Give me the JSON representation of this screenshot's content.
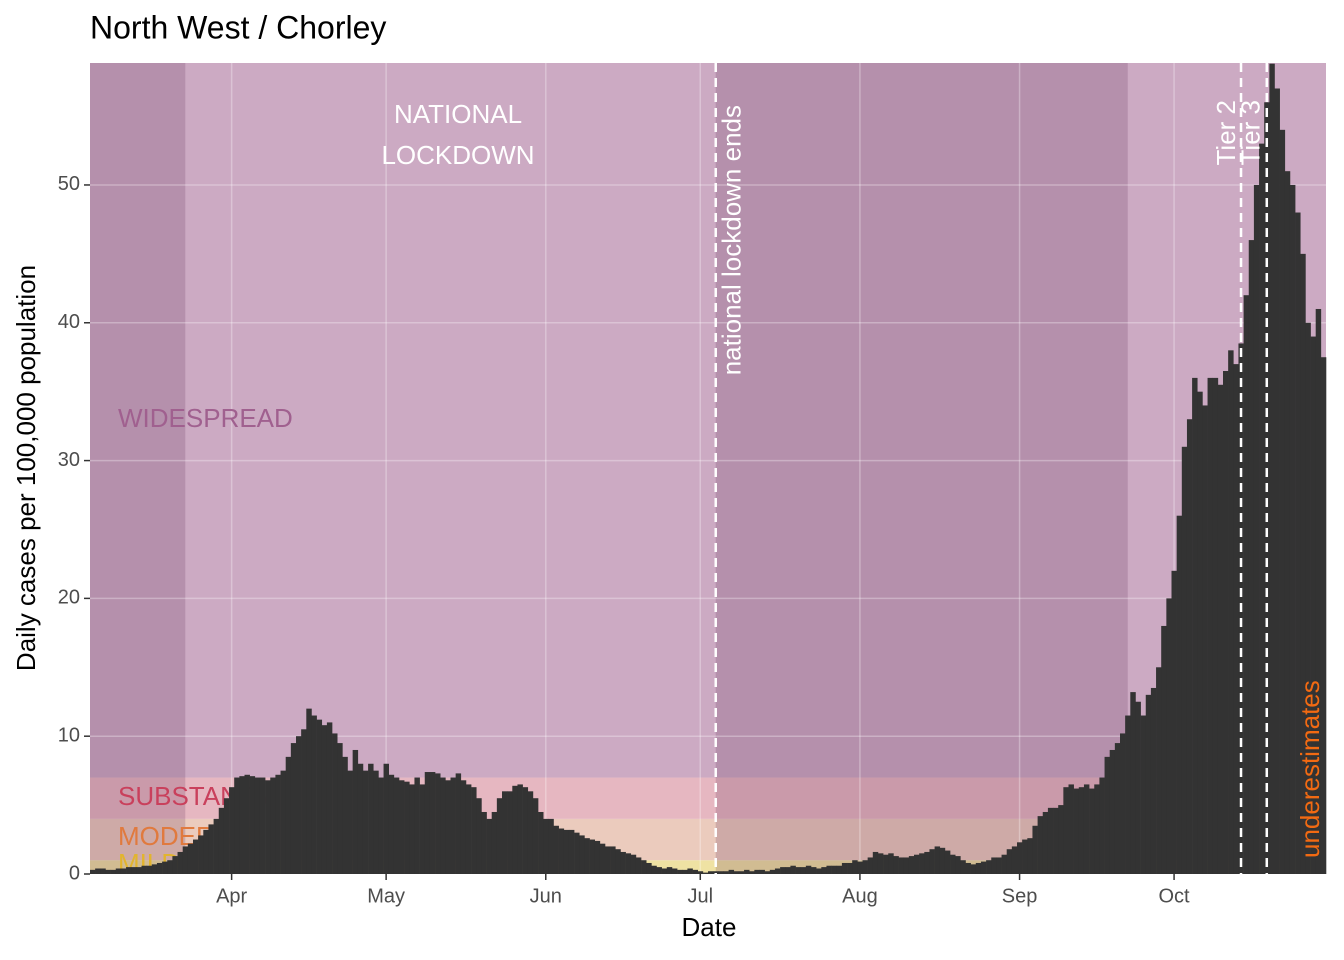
{
  "chart_data": {
    "type": "bar",
    "title": "North West / Chorley",
    "x_label": "Date",
    "y_label": "Daily cases per 100,000 population",
    "xlim": [
      64.5,
      304.5
    ],
    "xticks": [
      {
        "value": 92,
        "label": "Apr"
      },
      {
        "value": 122,
        "label": "May"
      },
      {
        "value": 153,
        "label": "Jun"
      },
      {
        "value": 183,
        "label": "Jul"
      },
      {
        "value": 214,
        "label": "Aug"
      },
      {
        "value": 245,
        "label": "Sep"
      },
      {
        "value": 275,
        "label": "Oct"
      }
    ],
    "ylim": [
      0,
      58.85
    ],
    "yticks": [
      0,
      10,
      20,
      30,
      40,
      50
    ],
    "grid": true,
    "color": "#333333",
    "levels": [
      {
        "label": "MILD",
        "from": 0,
        "to": 1,
        "color": "#efe2a3",
        "text_color": "#e2b42e"
      },
      {
        "label": "MODERATE",
        "from": 1,
        "to": 4,
        "color": "#ebcbbd",
        "text_color": "#e07a3e"
      },
      {
        "label": "SUBSTANTIAL",
        "from": 4,
        "to": 7,
        "color": "#e6b7c1",
        "text_color": "#c9405c"
      },
      {
        "label": "WIDESPREAD",
        "from": 7,
        "to": 58.85,
        "color": "#ccaac3",
        "text_color": "#a0608f"
      }
    ],
    "shaded_periods": [
      [
        64.5,
        83
      ],
      [
        186,
        266
      ]
    ],
    "shade_color": "#5a2a50",
    "shade_opacity": 0.2,
    "lockdown_label": [
      "NATIONAL",
      "LOCKDOWN"
    ],
    "events": [
      {
        "x": 186,
        "label": "national lockdown ends"
      },
      {
        "x": 288,
        "label": "Tier 2"
      },
      {
        "x": 293,
        "label": "Tier 3"
      }
    ],
    "note": "underestimates",
    "note_color": "#f26a12",
    "x": [
      65,
      66,
      67,
      68,
      69,
      70,
      71,
      72,
      73,
      74,
      75,
      76,
      77,
      78,
      79,
      80,
      81,
      82,
      83,
      84,
      85,
      86,
      87,
      88,
      89,
      90,
      91,
      92,
      93,
      94,
      95,
      96,
      97,
      98,
      99,
      100,
      101,
      102,
      103,
      104,
      105,
      106,
      107,
      108,
      109,
      110,
      111,
      112,
      113,
      114,
      115,
      116,
      117,
      118,
      119,
      120,
      121,
      122,
      123,
      124,
      125,
      126,
      127,
      128,
      129,
      130,
      131,
      132,
      133,
      134,
      135,
      136,
      137,
      138,
      139,
      140,
      141,
      142,
      143,
      144,
      145,
      146,
      147,
      148,
      149,
      150,
      151,
      152,
      153,
      154,
      155,
      156,
      157,
      158,
      159,
      160,
      161,
      162,
      163,
      164,
      165,
      166,
      167,
      168,
      169,
      170,
      171,
      172,
      173,
      174,
      175,
      176,
      177,
      178,
      179,
      180,
      181,
      182,
      183,
      184,
      185,
      186,
      187,
      188,
      189,
      190,
      191,
      192,
      193,
      194,
      195,
      196,
      197,
      198,
      199,
      200,
      201,
      202,
      203,
      204,
      205,
      206,
      207,
      208,
      209,
      210,
      211,
      212,
      213,
      214,
      215,
      216,
      217,
      218,
      219,
      220,
      221,
      222,
      223,
      224,
      225,
      226,
      227,
      228,
      229,
      230,
      231,
      232,
      233,
      234,
      235,
      236,
      237,
      238,
      239,
      240,
      241,
      242,
      243,
      244,
      245,
      246,
      247,
      248,
      249,
      250,
      251,
      252,
      253,
      254,
      255,
      256,
      257,
      258,
      259,
      260,
      261,
      262,
      263,
      264,
      265,
      266,
      267,
      268,
      269,
      270,
      271,
      272,
      273,
      274,
      275,
      276,
      277,
      278,
      279,
      280,
      281,
      282,
      283,
      284,
      285,
      286,
      287,
      288,
      289,
      290,
      291,
      292,
      293,
      294,
      295,
      296,
      297,
      298,
      299,
      300,
      301,
      302,
      303,
      304
    ],
    "values": [
      0.3,
      0.4,
      0.4,
      0.3,
      0.3,
      0.4,
      0.4,
      0.5,
      0.5,
      0.5,
      0.6,
      0.6,
      0.7,
      0.8,
      0.9,
      1.0,
      1.3,
      1.6,
      2.0,
      2.2,
      2.5,
      2.8,
      3.2,
      3.6,
      4.0,
      4.8,
      5.5,
      6.3,
      7.0,
      7.1,
      7.2,
      7.1,
      7.0,
      7.0,
      6.8,
      7.0,
      7.2,
      7.5,
      8.5,
      9.5,
      10.0,
      10.5,
      12.0,
      11.5,
      11.2,
      10.8,
      11.0,
      10.2,
      9.5,
      8.5,
      7.5,
      9.0,
      8.0,
      7.5,
      8.0,
      7.5,
      7.0,
      8.0,
      7.2,
      7.0,
      6.8,
      6.7,
      6.5,
      7.0,
      6.5,
      7.4,
      7.4,
      7.3,
      7.0,
      6.8,
      7.0,
      7.3,
      6.8,
      6.5,
      6.3,
      5.5,
      4.5,
      4.0,
      4.5,
      5.5,
      6.0,
      6.0,
      6.4,
      6.5,
      6.3,
      6.0,
      5.5,
      4.5,
      4.0,
      4.0,
      3.5,
      3.3,
      3.2,
      3.2,
      3.0,
      2.8,
      2.6,
      2.5,
      2.4,
      2.2,
      2.0,
      2.0,
      1.8,
      1.6,
      1.5,
      1.4,
      1.2,
      1.0,
      0.8,
      0.6,
      0.5,
      0.4,
      0.5,
      0.4,
      0.3,
      0.3,
      0.4,
      0.3,
      0.2,
      0.1,
      0.2,
      0.2,
      0.2,
      0.2,
      0.3,
      0.2,
      0.2,
      0.3,
      0.2,
      0.3,
      0.3,
      0.2,
      0.3,
      0.4,
      0.5,
      0.5,
      0.6,
      0.5,
      0.5,
      0.6,
      0.5,
      0.4,
      0.5,
      0.6,
      0.6,
      0.6,
      0.8,
      0.8,
      1.0,
      0.9,
      1.0,
      1.2,
      1.6,
      1.5,
      1.4,
      1.5,
      1.3,
      1.2,
      1.2,
      1.3,
      1.4,
      1.5,
      1.6,
      1.8,
      2.0,
      1.9,
      1.7,
      1.4,
      1.3,
      1.0,
      0.8,
      0.7,
      0.8,
      0.9,
      1.0,
      1.2,
      1.2,
      1.4,
      1.8,
      2.0,
      2.3,
      2.5,
      2.6,
      3.5,
      4.2,
      4.5,
      4.8,
      4.8,
      5.0,
      6.3,
      6.5,
      6.2,
      6.3,
      6.5,
      6.2,
      6.5,
      7.0,
      8.5,
      9.0,
      9.5,
      10.2,
      11.5,
      13.2,
      12.5,
      11.5,
      13.0,
      13.5,
      15.0,
      18.0,
      20.0,
      22.0,
      26.0,
      31.0,
      33.0,
      36.0,
      35.0,
      34.0,
      36.0,
      36.0,
      35.5,
      36.5,
      38.0,
      37.0,
      38.5,
      42.0,
      46.0,
      50.0,
      53.0,
      56.0,
      58.8,
      57.0,
      54.0,
      51.0,
      50.0,
      48.0,
      45.0,
      40.0,
      39.0,
      41.0,
      37.5
    ]
  }
}
